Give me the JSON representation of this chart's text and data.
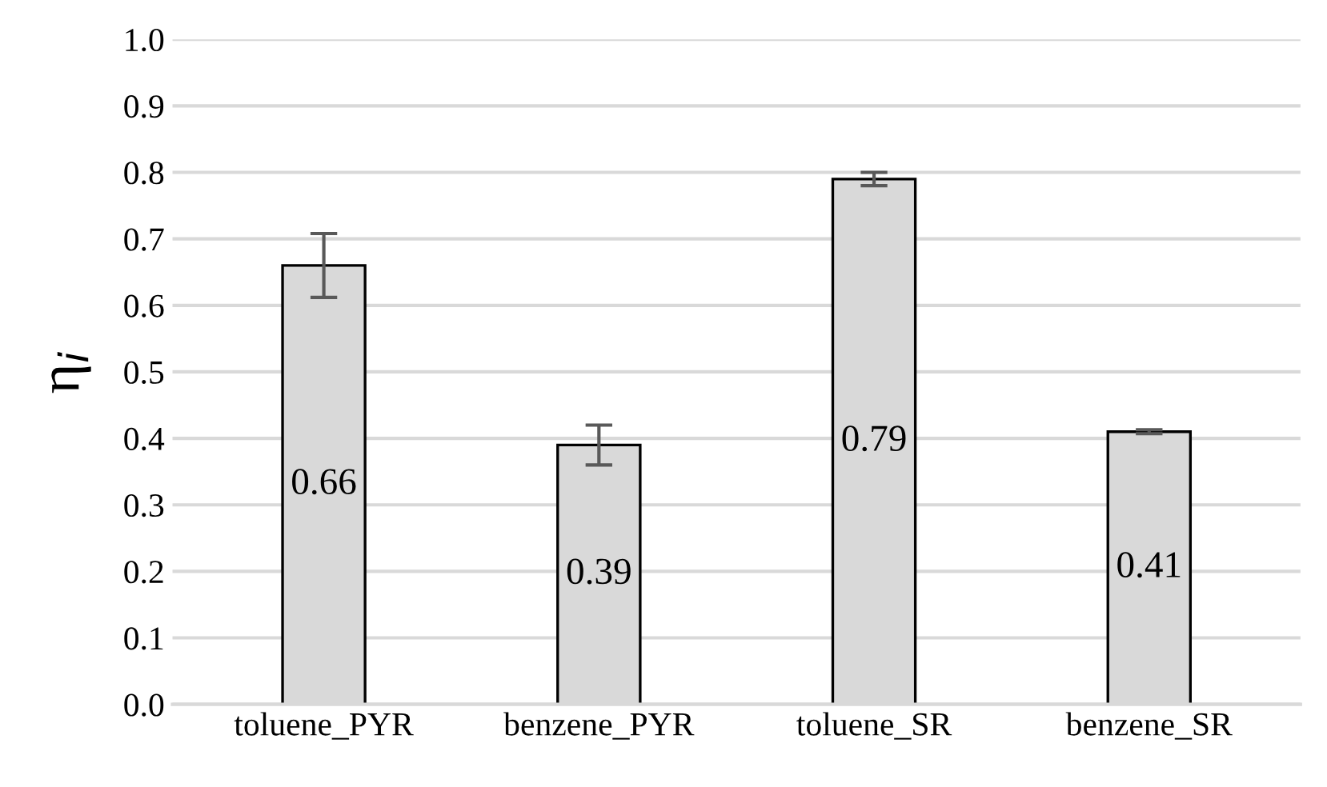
{
  "chart_data": {
    "type": "bar",
    "ylabel": "η$_{i}$",
    "categories": [
      "toluene_PYR",
      "benzene_PYR",
      "toluene_SR",
      "benzene_SR"
    ],
    "values": [
      0.66,
      0.39,
      0.79,
      0.41
    ],
    "errors": [
      0.048,
      0.03,
      0.01,
      0.003
    ],
    "color": "#d9d9d9",
    "data_labels": true,
    "ylim": [
      0,
      1
    ],
    "yticks": [
      {
        "value": 0,
        "label": "0.0"
      },
      {
        "value": 0.1,
        "label": "0.1"
      },
      {
        "value": 0.2,
        "label": "0.2"
      },
      {
        "value": 0.3,
        "label": "0.3"
      },
      {
        "value": 0.4,
        "label": "0.4"
      },
      {
        "value": 0.5,
        "label": "0.5"
      },
      {
        "value": 0.6,
        "label": "0.6"
      },
      {
        "value": 0.7,
        "label": "0.7"
      },
      {
        "value": 0.8,
        "label": "0.8"
      },
      {
        "value": 0.9,
        "label": "0.9"
      },
      {
        "value": 1,
        "label": "1.0"
      }
    ],
    "grid": "y"
  }
}
